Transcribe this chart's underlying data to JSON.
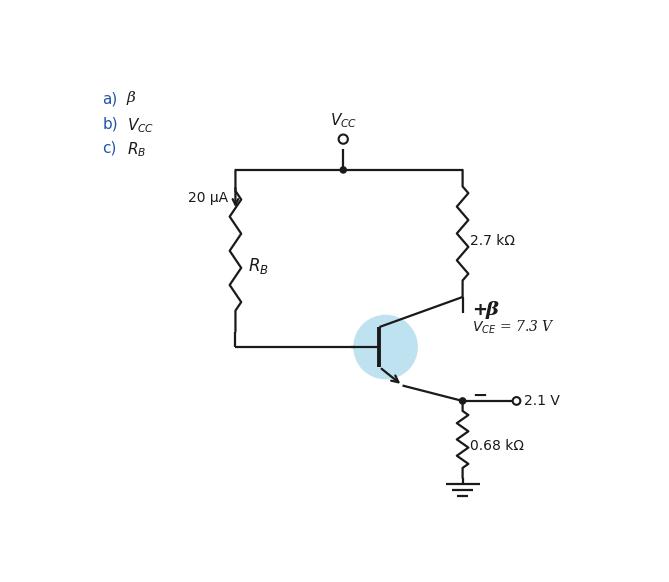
{
  "background_color": "#ffffff",
  "text_color": "#1a1a1a",
  "label_color": "#2255aa",
  "annotations": {
    "a_label": "a)",
    "a_sym": "β",
    "b_label": "b)",
    "b_sym": "$V_{CC}$",
    "c_label": "c)",
    "c_sym": "$R_B$",
    "vcc_label": "$V_{CC}$",
    "current_label": "20 μA",
    "rb_label": "$R_B$",
    "r1_label": "2.7 kΩ",
    "r2_label": "0.68 kΩ",
    "beta_label": "β",
    "vce_label": "$V_{CE}$ = 7.3 V",
    "v21_label": "2.1 V",
    "plus_label": "+",
    "minus_label": "−"
  },
  "colors": {
    "wire": "#1a1a1a",
    "resistor": "#1a1a1a",
    "transistor_circle": "#b8dff0",
    "node_dot": "#1a1a1a",
    "vcc_circle": "#1a1a1a",
    "terminal_circle": "#1a1a1a"
  },
  "lw": 1.6
}
